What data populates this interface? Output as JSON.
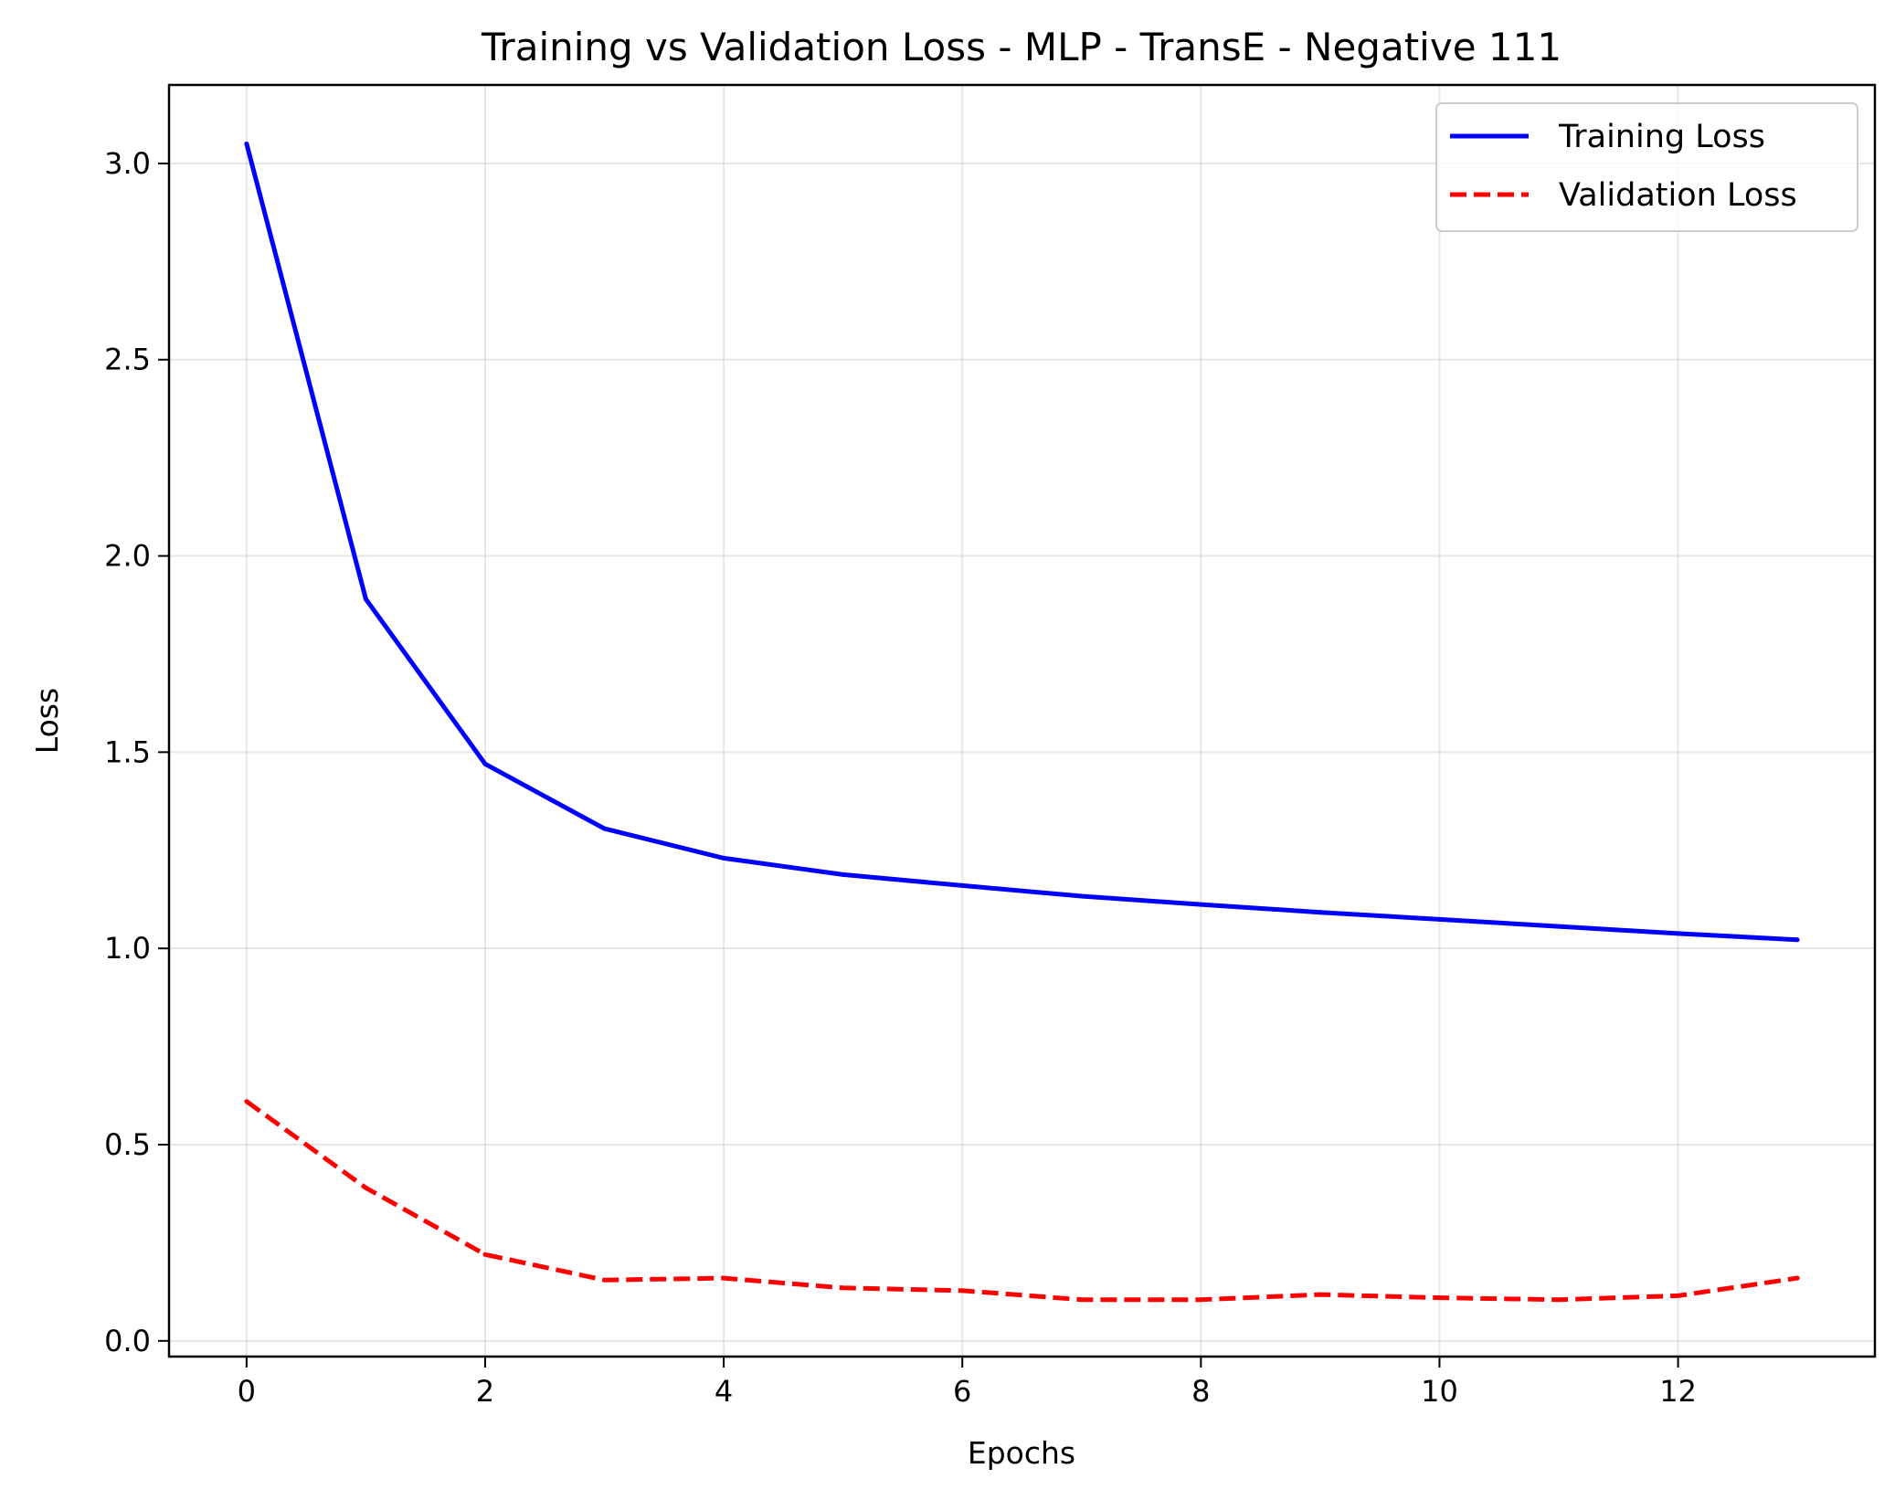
{
  "chart_data": {
    "type": "line",
    "title": "Training vs Validation Loss - MLP - TransE - Negative 111",
    "xlabel": "Epochs",
    "ylabel": "Loss",
    "xlim": [
      -0.65,
      13.65
    ],
    "ylim": [
      -0.04,
      3.2
    ],
    "xticks": [
      0,
      2,
      4,
      6,
      8,
      10,
      12
    ],
    "xtick_labels": [
      "0",
      "2",
      "4",
      "6",
      "8",
      "10",
      "12"
    ],
    "yticks": [
      0.0,
      0.5,
      1.0,
      1.5,
      2.0,
      2.5,
      3.0
    ],
    "ytick_labels": [
      "0.0",
      "0.5",
      "1.0",
      "1.5",
      "2.0",
      "2.5",
      "3.0"
    ],
    "grid": true,
    "legend_position": "top-right",
    "x": [
      0,
      1,
      2,
      3,
      4,
      5,
      6,
      7,
      8,
      9,
      10,
      11,
      12,
      13
    ],
    "series": [
      {
        "name": "Training Loss",
        "color": "#0000ff",
        "style": "solid",
        "values": [
          3.05,
          1.89,
          1.47,
          1.305,
          1.23,
          1.188,
          1.16,
          1.133,
          1.112,
          1.092,
          1.074,
          1.056,
          1.038,
          1.022
        ]
      },
      {
        "name": "Validation Loss",
        "color": "#ff0000",
        "style": "dashed",
        "values": [
          0.61,
          0.39,
          0.22,
          0.155,
          0.16,
          0.135,
          0.128,
          0.105,
          0.105,
          0.118,
          0.11,
          0.105,
          0.115,
          0.16
        ]
      }
    ]
  }
}
